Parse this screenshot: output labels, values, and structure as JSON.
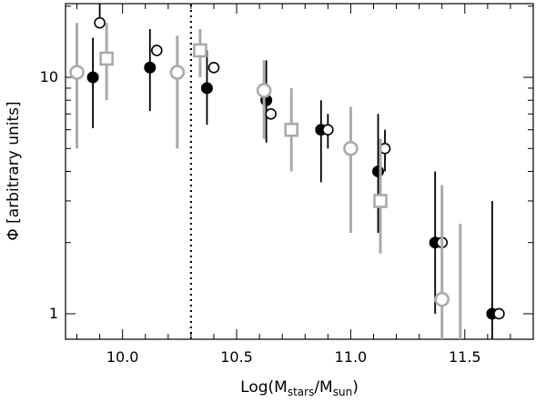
{
  "chart_data": {
    "type": "scatter",
    "xlabel": "Log(M_stars/M_sun)",
    "xlabel_parts": {
      "prefix": "Log(M",
      "sub1": "stars",
      "mid": "/M",
      "sub2": "sun",
      "suffix": ")"
    },
    "ylabel": "Φ [arbitrary units]",
    "xlim": [
      9.75,
      11.8
    ],
    "ylim": [
      0.78,
      20.5
    ],
    "y_scale": "log",
    "x_ticks": [
      10.0,
      10.5,
      11.0,
      11.5
    ],
    "x_tick_labels": [
      "10.0",
      "10.5",
      "11.0",
      "11.5"
    ],
    "y_ticks": [
      1,
      10
    ],
    "y_tick_labels": [
      "1",
      "10"
    ],
    "reference_line": {
      "x": 10.3,
      "style": "dotted"
    },
    "grid": false,
    "series": [
      {
        "marker": "filled-circle",
        "color": "#000000",
        "points": [
          {
            "x": 9.87,
            "y": 10.0,
            "lo": 6.1,
            "hi": 14.7
          },
          {
            "x": 10.12,
            "y": 11.0,
            "lo": 7.2,
            "hi": 16.0
          },
          {
            "x": 10.37,
            "y": 9.0,
            "lo": 6.3,
            "hi": 13.0
          },
          {
            "x": 10.63,
            "y": 8.0,
            "lo": 5.3,
            "hi": 11.8
          },
          {
            "x": 10.87,
            "y": 6.0,
            "lo": 3.6,
            "hi": 8.0
          },
          {
            "x": 11.12,
            "y": 4.0,
            "lo": 2.2,
            "hi": 7.0
          },
          {
            "x": 11.37,
            "y": 2.0,
            "lo": 1.0,
            "hi": 4.0
          },
          {
            "x": 11.62,
            "y": 1.0,
            "lo": 0.78,
            "hi": 3.0
          }
        ]
      },
      {
        "marker": "open-circle",
        "color": "#000000",
        "points": [
          {
            "x": 9.9,
            "y": 17.0,
            "lo": 17.0,
            "hi": 20.5
          },
          {
            "x": 10.15,
            "y": 13.0,
            "lo": 13.0,
            "hi": 13.0
          },
          {
            "x": 10.4,
            "y": 11.0,
            "lo": 11.0,
            "hi": 11.0
          },
          {
            "x": 10.65,
            "y": 7.0,
            "lo": 7.0,
            "hi": 7.0
          },
          {
            "x": 10.9,
            "y": 6.0,
            "lo": 5.0,
            "hi": 7.0
          },
          {
            "x": 11.15,
            "y": 5.0,
            "lo": 4.0,
            "hi": 6.0
          },
          {
            "x": 11.4,
            "y": 2.0,
            "lo": 2.0,
            "hi": 2.0
          },
          {
            "x": 11.65,
            "y": 1.0,
            "lo": 1.0,
            "hi": 1.0
          }
        ]
      },
      {
        "marker": "open-circle",
        "color": "#aaaaaa",
        "points": [
          {
            "x": 9.8,
            "y": 10.5,
            "lo": 5.0,
            "hi": 17.0
          },
          {
            "x": 10.24,
            "y": 10.5,
            "lo": 5.0,
            "hi": 15.0
          },
          {
            "x": 10.62,
            "y": 8.8,
            "lo": 5.5,
            "hi": 11.8
          },
          {
            "x": 11.0,
            "y": 5.0,
            "lo": 2.2,
            "hi": 7.5
          },
          {
            "x": 11.4,
            "y": 1.15,
            "lo": 0.78,
            "hi": 3.5
          }
        ]
      },
      {
        "marker": "open-square",
        "color": "#aaaaaa",
        "points": [
          {
            "x": 9.93,
            "y": 12.0,
            "lo": 8.0,
            "hi": 17.0
          },
          {
            "x": 10.34,
            "y": 13.0,
            "lo": 10.0,
            "hi": 16.0
          },
          {
            "x": 10.74,
            "y": 6.0,
            "lo": 4.0,
            "hi": 9.0
          },
          {
            "x": 11.13,
            "y": 3.0,
            "lo": 1.8,
            "hi": 5.5
          },
          {
            "x": 11.48,
            "y": 0.85,
            "lo": 0.78,
            "hi": 2.4,
            "marker_hidden": true
          }
        ]
      }
    ]
  }
}
